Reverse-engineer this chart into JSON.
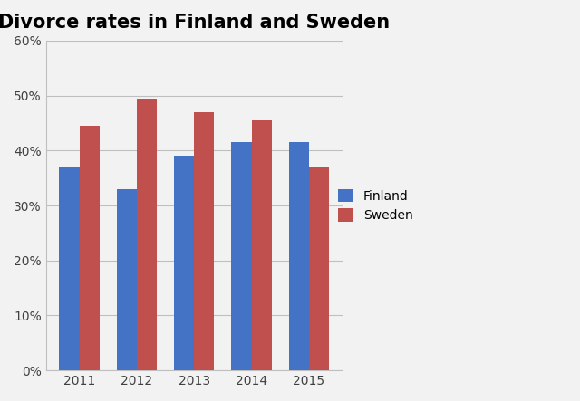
{
  "title": "Divorce rates in Finland and Sweden",
  "years": [
    "2011",
    "2012",
    "2013",
    "2014",
    "2015"
  ],
  "finland": [
    37,
    33,
    39,
    41.5,
    41.5
  ],
  "sweden": [
    44.5,
    49.5,
    47,
    45.5,
    37
  ],
  "finland_color": "#4472C4",
  "sweden_color": "#C0504D",
  "ylim": [
    0,
    60
  ],
  "yticks": [
    0,
    10,
    20,
    30,
    40,
    50,
    60
  ],
  "ytick_labels": [
    "0%",
    "10%",
    "20%",
    "30%",
    "40%",
    "50%",
    "60%"
  ],
  "legend_labels": [
    "Finland",
    "Sweden"
  ],
  "bar_width": 0.35,
  "title_fontsize": 15,
  "tick_fontsize": 10,
  "legend_fontsize": 10,
  "bg_color": "#F2F2F2"
}
